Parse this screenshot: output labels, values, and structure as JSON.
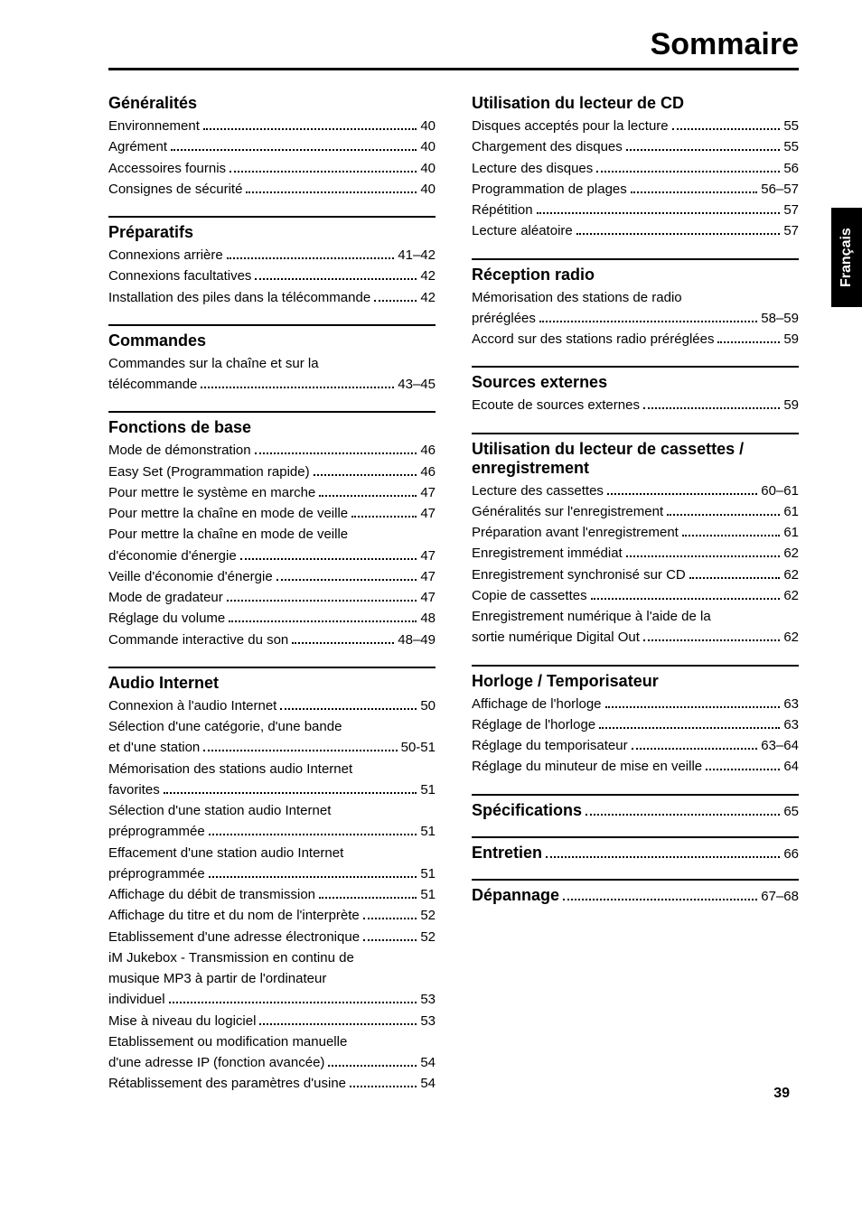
{
  "page_title": "Sommaire",
  "language_tab": "Français",
  "page_number": "39",
  "left_sections": [
    {
      "title": "Généralités",
      "items": [
        {
          "label": "Environnement",
          "page": "40"
        },
        {
          "label": "Agrément",
          "page": "40"
        },
        {
          "label": "Accessoires fournis",
          "page": "40"
        },
        {
          "label": "Consignes de sécurité",
          "page": "40"
        }
      ]
    },
    {
      "title": "Préparatifs",
      "items": [
        {
          "label": "Connexions arrière",
          "page": "41–42"
        },
        {
          "label": "Connexions facultatives",
          "page": "42"
        },
        {
          "label": "Installation des piles dans la télécommande",
          "page": "42"
        }
      ]
    },
    {
      "title": "Commandes",
      "items": [
        {
          "label": "Commandes sur la chaîne et sur la télécommande",
          "page": "43–45",
          "wrap": true
        }
      ]
    },
    {
      "title": "Fonctions de base",
      "items": [
        {
          "label": "Mode de démonstration",
          "page": "46"
        },
        {
          "label": "Easy Set (Programmation rapide)",
          "page": "46"
        },
        {
          "label": "Pour mettre le système en marche",
          "page": "47"
        },
        {
          "label": "Pour mettre la chaîne en mode de veille",
          "page": "47"
        },
        {
          "label": "Pour mettre la chaîne en mode de veille d'économie d'énergie",
          "page": "47",
          "wrap": true
        },
        {
          "label": "Veille d'économie d'énergie",
          "page": "47"
        },
        {
          "label": "Mode de gradateur",
          "page": "47"
        },
        {
          "label": "Réglage du volume",
          "page": "48"
        },
        {
          "label": "Commande interactive du son",
          "page": "48–49"
        }
      ]
    },
    {
      "title": "Audio Internet",
      "items": [
        {
          "label": "Connexion à l'audio Internet",
          "page": "50"
        },
        {
          "label": "Sélection d'une catégorie, d'une bande et d'une station",
          "page": "50-51",
          "wrap": true
        },
        {
          "label": "Mémorisation des stations audio Internet favorites",
          "page": "51",
          "wrap": true
        },
        {
          "label": "Sélection d'une station audio Internet préprogrammée",
          "page": "51",
          "wrap": true
        },
        {
          "label": "Effacement d'une station audio Internet préprogrammée",
          "page": "51",
          "wrap": true
        },
        {
          "label": "Affichage du débit de transmission",
          "page": "51"
        },
        {
          "label": "Affichage du titre et du nom de l'interprète",
          "page": "52"
        },
        {
          "label": "Etablissement d'une adresse électronique",
          "page": "52",
          "wrap": true
        },
        {
          "label": "iM Jukebox - Transmission en continu de musique MP3 à partir de l'ordinateur individuel",
          "page": "53",
          "wrap": true
        },
        {
          "label": "Mise à niveau du logiciel",
          "page": "53"
        },
        {
          "label": "Etablissement ou modification manuelle d'une adresse IP (fonction avancée)",
          "page": "54",
          "wrap": true
        },
        {
          "label": "Rétablissement des paramètres d'usine",
          "page": "54"
        }
      ]
    }
  ],
  "right_sections": [
    {
      "title": "Utilisation du lecteur de CD",
      "nodivider": true,
      "items": [
        {
          "label": "Disques acceptés pour la lecture",
          "page": "55"
        },
        {
          "label": "Chargement des disques",
          "page": "55"
        },
        {
          "label": "Lecture des disques",
          "page": "56"
        },
        {
          "label": "Programmation de plages",
          "page": "56–57"
        },
        {
          "label": "Répétition",
          "page": "57"
        },
        {
          "label": "Lecture aléatoire",
          "page": "57"
        }
      ]
    },
    {
      "title": "Réception radio",
      "items": [
        {
          "label": "Mémorisation des stations de radio préréglées",
          "page": "58–59",
          "wrap": true
        },
        {
          "label": "Accord sur des stations radio préréglées",
          "page": "59"
        }
      ]
    },
    {
      "title": "Sources externes",
      "items": [
        {
          "label": "Ecoute de sources externes",
          "page": "59"
        }
      ]
    },
    {
      "title": "Utilisation du lecteur de cassettes / enregistrement",
      "items": [
        {
          "label": "Lecture des cassettes",
          "page": "60–61"
        },
        {
          "label": "Généralités sur l'enregistrement",
          "page": "61"
        },
        {
          "label": "Préparation avant l'enregistrement",
          "page": "61"
        },
        {
          "label": "Enregistrement immédiat",
          "page": "62"
        },
        {
          "label": "Enregistrement synchronisé sur CD",
          "page": "62"
        },
        {
          "label": "Copie de cassettes",
          "page": "62"
        },
        {
          "label": "Enregistrement numérique à l'aide de la sortie numérique Digital Out",
          "page": "62",
          "wrap": true
        }
      ]
    },
    {
      "title": "Horloge / Temporisateur",
      "items": [
        {
          "label": "Affichage de l'horloge",
          "page": "63"
        },
        {
          "label": "Réglage de l'horloge",
          "page": "63"
        },
        {
          "label": "Réglage du temporisateur",
          "page": "63–64"
        },
        {
          "label": "Réglage du minuteur de mise en veille",
          "page": "64"
        }
      ]
    }
  ],
  "right_inline_headings": [
    {
      "title": "Spécifications",
      "page": "65"
    },
    {
      "title": "Entretien",
      "page": "66"
    },
    {
      "title": "Dépannage",
      "page": "67–68"
    }
  ]
}
